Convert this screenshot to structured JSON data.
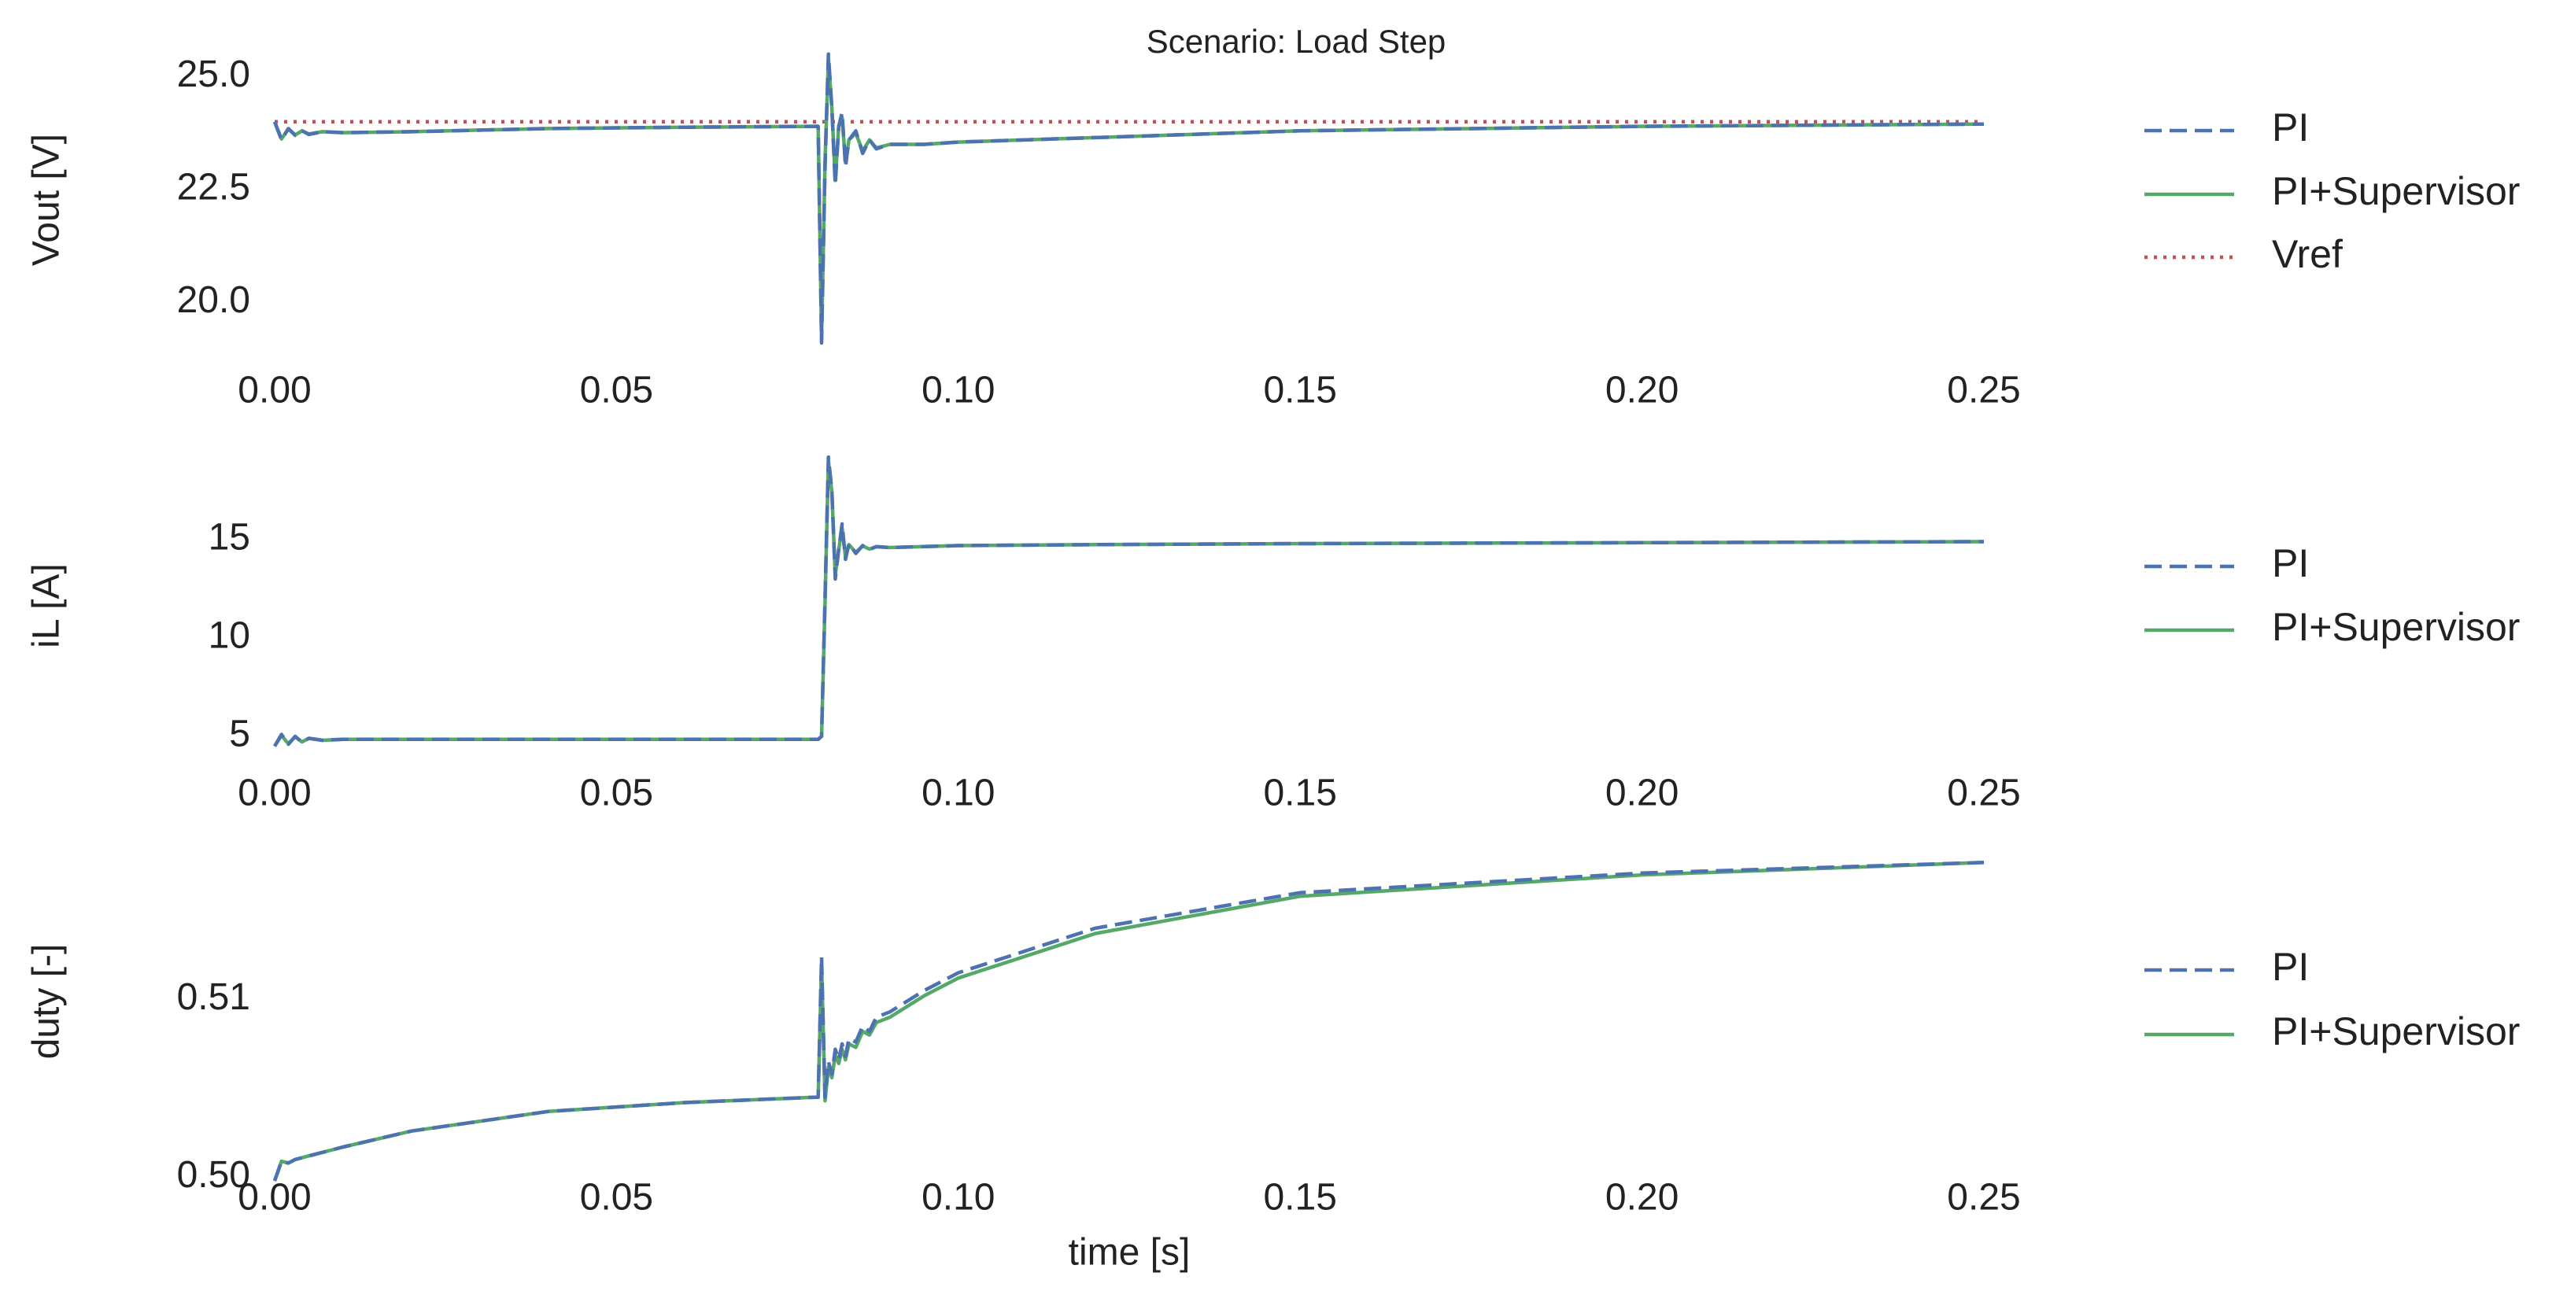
{
  "title": "Scenario: Load Step",
  "chart_data": [
    {
      "type": "line",
      "ylabel": "Vout [V]",
      "x": [
        0,
        0.001,
        0.002,
        0.003,
        0.004,
        0.005,
        0.007,
        0.01,
        0.02,
        0.04,
        0.06,
        0.079,
        0.0795,
        0.08,
        0.0805,
        0.081,
        0.0815,
        0.082,
        0.0825,
        0.083,
        0.0835,
        0.084,
        0.085,
        0.086,
        0.087,
        0.088,
        0.09,
        0.095,
        0.1,
        0.12,
        0.15,
        0.2,
        0.25
      ],
      "xlim": [
        0,
        0.25
      ],
      "xticks": [
        {
          "value": 0,
          "label": "0.00"
        },
        0.05,
        {
          "value": 0.1,
          "label": "0.10"
        },
        0.15,
        {
          "value": 0.2,
          "label": "0.20"
        },
        0.25
      ],
      "ylim": [
        19.1,
        25.6
      ],
      "yticks": [
        {
          "value": 25,
          "label": "25.0"
        },
        22.5,
        {
          "value": 20,
          "label": "20.0"
        }
      ],
      "series": [
        {
          "name": "PI",
          "color": "#4c72b0",
          "dash": "dashed",
          "values": [
            24.0,
            23.6,
            23.85,
            23.7,
            23.8,
            23.72,
            23.78,
            23.76,
            23.78,
            23.85,
            23.88,
            23.9,
            23.9,
            19.1,
            23.0,
            25.5,
            24.3,
            22.6,
            23.9,
            24.2,
            23.0,
            23.6,
            23.8,
            23.3,
            23.6,
            23.4,
            23.5,
            23.5,
            23.55,
            23.65,
            23.8,
            23.9,
            23.95
          ]
        },
        {
          "name": "PI+Supervisor",
          "color": "#55a868",
          "dash": "solid",
          "values": [
            24.0,
            23.62,
            23.84,
            23.71,
            23.8,
            23.73,
            23.78,
            23.76,
            23.78,
            23.85,
            23.88,
            23.9,
            23.9,
            19.2,
            23.1,
            25.4,
            24.3,
            22.7,
            23.9,
            24.1,
            23.1,
            23.6,
            23.75,
            23.35,
            23.6,
            23.42,
            23.5,
            23.5,
            23.55,
            23.65,
            23.8,
            23.9,
            23.95
          ]
        },
        {
          "name": "Vref",
          "color": "#c44e52",
          "dash": "dotted",
          "values": [
            24,
            24,
            24,
            24,
            24,
            24,
            24,
            24,
            24,
            24,
            24,
            24,
            24,
            24,
            24,
            24,
            24,
            24,
            24,
            24,
            24,
            24,
            24,
            24,
            24,
            24,
            24,
            24,
            24,
            24,
            24,
            24,
            24
          ]
        }
      ]
    },
    {
      "type": "line",
      "ylabel": "iL [A]",
      "x": [
        0,
        0.001,
        0.002,
        0.003,
        0.004,
        0.005,
        0.007,
        0.01,
        0.02,
        0.04,
        0.06,
        0.079,
        0.0795,
        0.08,
        0.0805,
        0.081,
        0.0815,
        0.082,
        0.0825,
        0.083,
        0.0835,
        0.084,
        0.085,
        0.086,
        0.087,
        0.088,
        0.09,
        0.095,
        0.1,
        0.12,
        0.15,
        0.2,
        0.25
      ],
      "xlim": [
        0,
        0.25
      ],
      "xticks": [
        {
          "value": 0,
          "label": "0.00"
        },
        0.05,
        {
          "value": 0.1,
          "label": "0.10"
        },
        0.15,
        {
          "value": 0.2,
          "label": "0.20"
        },
        0.25
      ],
      "ylim": [
        4.4,
        19.4
      ],
      "yticks": [
        15,
        10,
        5
      ],
      "series": [
        {
          "name": "PI",
          "color": "#4c72b0",
          "dash": "dashed",
          "values": [
            4.5,
            5.1,
            4.6,
            5.0,
            4.7,
            4.9,
            4.8,
            4.85,
            4.85,
            4.85,
            4.85,
            4.85,
            4.85,
            5.0,
            12.0,
            19.2,
            17.5,
            13.0,
            14.5,
            15.8,
            14.0,
            14.8,
            14.3,
            14.7,
            14.5,
            14.65,
            14.6,
            14.65,
            14.7,
            14.75,
            14.8,
            14.85,
            14.9
          ]
        },
        {
          "name": "PI+Supervisor",
          "color": "#55a868",
          "dash": "solid",
          "values": [
            4.5,
            5.05,
            4.62,
            4.98,
            4.72,
            4.9,
            4.8,
            4.85,
            4.85,
            4.85,
            4.85,
            4.85,
            4.85,
            5.0,
            11.8,
            19.0,
            17.4,
            13.2,
            14.5,
            15.6,
            14.1,
            14.75,
            14.35,
            14.68,
            14.52,
            14.64,
            14.6,
            14.65,
            14.7,
            14.75,
            14.8,
            14.85,
            14.9
          ]
        }
      ]
    },
    {
      "type": "line",
      "ylabel": "duty [-]",
      "xlabel": "time [s]",
      "x": [
        0,
        0.001,
        0.002,
        0.003,
        0.004,
        0.005,
        0.007,
        0.01,
        0.02,
        0.04,
        0.06,
        0.079,
        0.0795,
        0.08,
        0.0805,
        0.081,
        0.0815,
        0.082,
        0.0825,
        0.083,
        0.0835,
        0.084,
        0.085,
        0.086,
        0.087,
        0.088,
        0.09,
        0.095,
        0.1,
        0.12,
        0.15,
        0.2,
        0.25
      ],
      "xlim": [
        0,
        0.25
      ],
      "xticks": [
        {
          "value": 0,
          "label": "0.00"
        },
        0.05,
        {
          "value": 0.1,
          "label": "0.10"
        },
        0.15,
        {
          "value": 0.2,
          "label": "0.20"
        },
        0.25
      ],
      "ylim": [
        0.4998,
        0.5178
      ],
      "yticks": [
        0.51,
        {
          "value": 0.5,
          "label": "0.50"
        }
      ],
      "series": [
        {
          "name": "PI",
          "color": "#4c72b0",
          "dash": "dashed",
          "values": [
            0.4998,
            0.5009,
            0.5008,
            0.501,
            0.5011,
            0.5012,
            0.5014,
            0.5017,
            0.5026,
            0.5037,
            0.5042,
            0.5045,
            0.5045,
            0.5124,
            0.5045,
            0.5065,
            0.5058,
            0.5072,
            0.5066,
            0.5075,
            0.5068,
            0.5078,
            0.5076,
            0.5085,
            0.5082,
            0.509,
            0.5093,
            0.5105,
            0.5115,
            0.514,
            0.516,
            0.5171,
            0.5177
          ]
        },
        {
          "name": "PI+Supervisor",
          "color": "#55a868",
          "dash": "solid",
          "values": [
            0.4998,
            0.5009,
            0.5008,
            0.501,
            0.5011,
            0.5012,
            0.5014,
            0.5017,
            0.5026,
            0.5037,
            0.5042,
            0.5045,
            0.5045,
            0.512,
            0.5043,
            0.5062,
            0.5056,
            0.5069,
            0.5064,
            0.5072,
            0.5066,
            0.5075,
            0.5073,
            0.5082,
            0.508,
            0.5087,
            0.509,
            0.5102,
            0.5112,
            0.5137,
            0.5158,
            0.517,
            0.5177
          ]
        }
      ]
    }
  ]
}
